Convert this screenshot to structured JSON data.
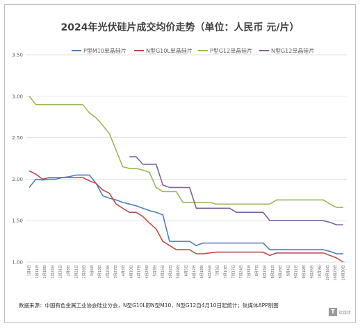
{
  "chart_data": {
    "type": "line",
    "title": "2024年光伏硅片成交均价走势（单位：人民币 元/片）",
    "xlabel": "",
    "ylabel": "",
    "ylim": [
      1.0,
      3.5
    ],
    "yticks": [
      "1.00",
      "1.50",
      "2.00",
      "2.50",
      "3.00",
      "3.50"
    ],
    "grid": true,
    "legend_position": "top",
    "x": [
      "1月4日",
      "1月11日",
      "1月18日",
      "1月25日",
      "2月1日",
      "2月8日",
      "2月15日",
      "2月22日",
      "2月29日",
      "3月7日",
      "3月14日",
      "3月21日",
      "3月28日",
      "4月3日",
      "4月11日",
      "4月17日",
      "4月24日",
      "5月2日",
      "5月8日",
      "5月15日",
      "5月22日",
      "5月29日",
      "6月5日",
      "6月12日",
      "6月19日",
      "6月26日",
      "7月3日",
      "7月10日",
      "7月17日",
      "7月24日",
      "7月31日",
      "8月7日",
      "8月14日",
      "8月21日",
      "8月28日",
      "9月4日",
      "9月11日",
      "9月18日",
      "9月25日",
      "10月9日",
      "10月16日",
      "10月23日",
      "10月30日",
      "11月6日",
      "11月13日",
      "11月20日",
      "11月27日",
      "12月4日"
    ],
    "x_tick_labels": [
      "1月4日",
      "1月11日",
      "1月18日",
      "1月24日",
      "1月31日",
      "2月8日",
      "2月21日",
      "2月28日",
      "3月6日",
      "3月13日",
      "3月20日",
      "3月27日",
      "4月3日",
      "4月10日",
      "4月17日",
      "4月24日",
      "5月8日",
      "5月15日",
      "5月22日",
      "5月29日",
      "6月5日",
      "6月12日",
      "6月19日",
      "6月26日",
      "7月3日",
      "7月10日",
      "7月17日",
      "7月24日",
      "7月31日",
      "8月7日",
      "8月14日",
      "8月21日",
      "8月28日",
      "9月4日",
      "9月11日",
      "9月19日",
      "9月26日",
      "10月9日",
      "10月16日",
      "10月23日",
      "10月30日"
    ],
    "series": [
      {
        "name": "P型M10单晶硅片",
        "color": "#4a7ebb",
        "values": [
          1.9,
          2.0,
          1.99,
          2.0,
          2.0,
          2.02,
          2.03,
          2.05,
          2.05,
          2.05,
          1.95,
          1.8,
          1.77,
          1.75,
          1.72,
          1.7,
          1.68,
          1.65,
          1.62,
          1.6,
          1.57,
          1.25,
          1.25,
          1.25,
          1.25,
          1.2,
          1.23,
          1.23,
          1.23,
          1.23,
          1.23,
          1.23,
          1.23,
          1.23,
          1.23,
          1.23,
          1.15,
          1.15,
          1.15,
          1.15,
          1.15,
          1.15,
          1.15,
          1.15,
          1.15,
          1.13,
          1.1,
          1.1
        ]
      },
      {
        "name": "N型G10L单晶硅片",
        "color": "#be4b48",
        "values": [
          2.1,
          2.06,
          2.0,
          2.02,
          2.02,
          2.02,
          2.02,
          2.02,
          2.02,
          1.98,
          1.95,
          1.87,
          1.83,
          1.7,
          1.65,
          1.6,
          1.6,
          1.55,
          1.47,
          1.4,
          1.25,
          1.2,
          1.15,
          1.15,
          1.15,
          1.1,
          1.1,
          1.11,
          1.12,
          1.12,
          1.12,
          1.12,
          1.12,
          1.12,
          1.12,
          1.12,
          1.08,
          1.11,
          1.11,
          1.11,
          1.11,
          1.11,
          1.11,
          1.11,
          1.11,
          1.08,
          1.05,
          1.0
        ]
      },
      {
        "name": "P型G12单晶硅片",
        "color": "#98b954",
        "values": [
          3.0,
          2.9,
          2.9,
          2.9,
          2.9,
          2.9,
          2.9,
          2.9,
          2.9,
          2.8,
          2.74,
          2.65,
          2.55,
          2.35,
          2.15,
          2.13,
          2.13,
          2.11,
          2.08,
          1.9,
          1.85,
          1.85,
          1.85,
          1.72,
          1.72,
          1.72,
          1.72,
          1.72,
          1.7,
          1.7,
          1.7,
          1.7,
          1.7,
          1.7,
          1.7,
          1.7,
          1.7,
          1.75,
          1.75,
          1.75,
          1.75,
          1.75,
          1.75,
          1.75,
          1.75,
          1.7,
          1.66,
          1.66
        ]
      },
      {
        "name": "N型G12单晶硅片",
        "color": "#7d60a0",
        "values": [
          null,
          null,
          null,
          null,
          null,
          null,
          null,
          null,
          null,
          null,
          null,
          null,
          null,
          null,
          null,
          2.27,
          2.27,
          2.18,
          2.18,
          2.18,
          1.93,
          1.9,
          1.9,
          1.9,
          1.9,
          1.65,
          1.65,
          1.65,
          1.65,
          1.65,
          1.65,
          1.6,
          1.6,
          1.6,
          1.6,
          1.6,
          1.5,
          1.5,
          1.5,
          1.5,
          1.5,
          1.5,
          1.5,
          1.5,
          1.5,
          1.48,
          1.45,
          1.45
        ]
      }
    ],
    "source_note": "数据来源：中国有色金属工业协会硅业分会，N型G10L即N型M10，N型G12自4月10日起统计；钛媒体APP制图"
  },
  "watermark": {
    "mark": "T",
    "text": "钛媒体"
  }
}
